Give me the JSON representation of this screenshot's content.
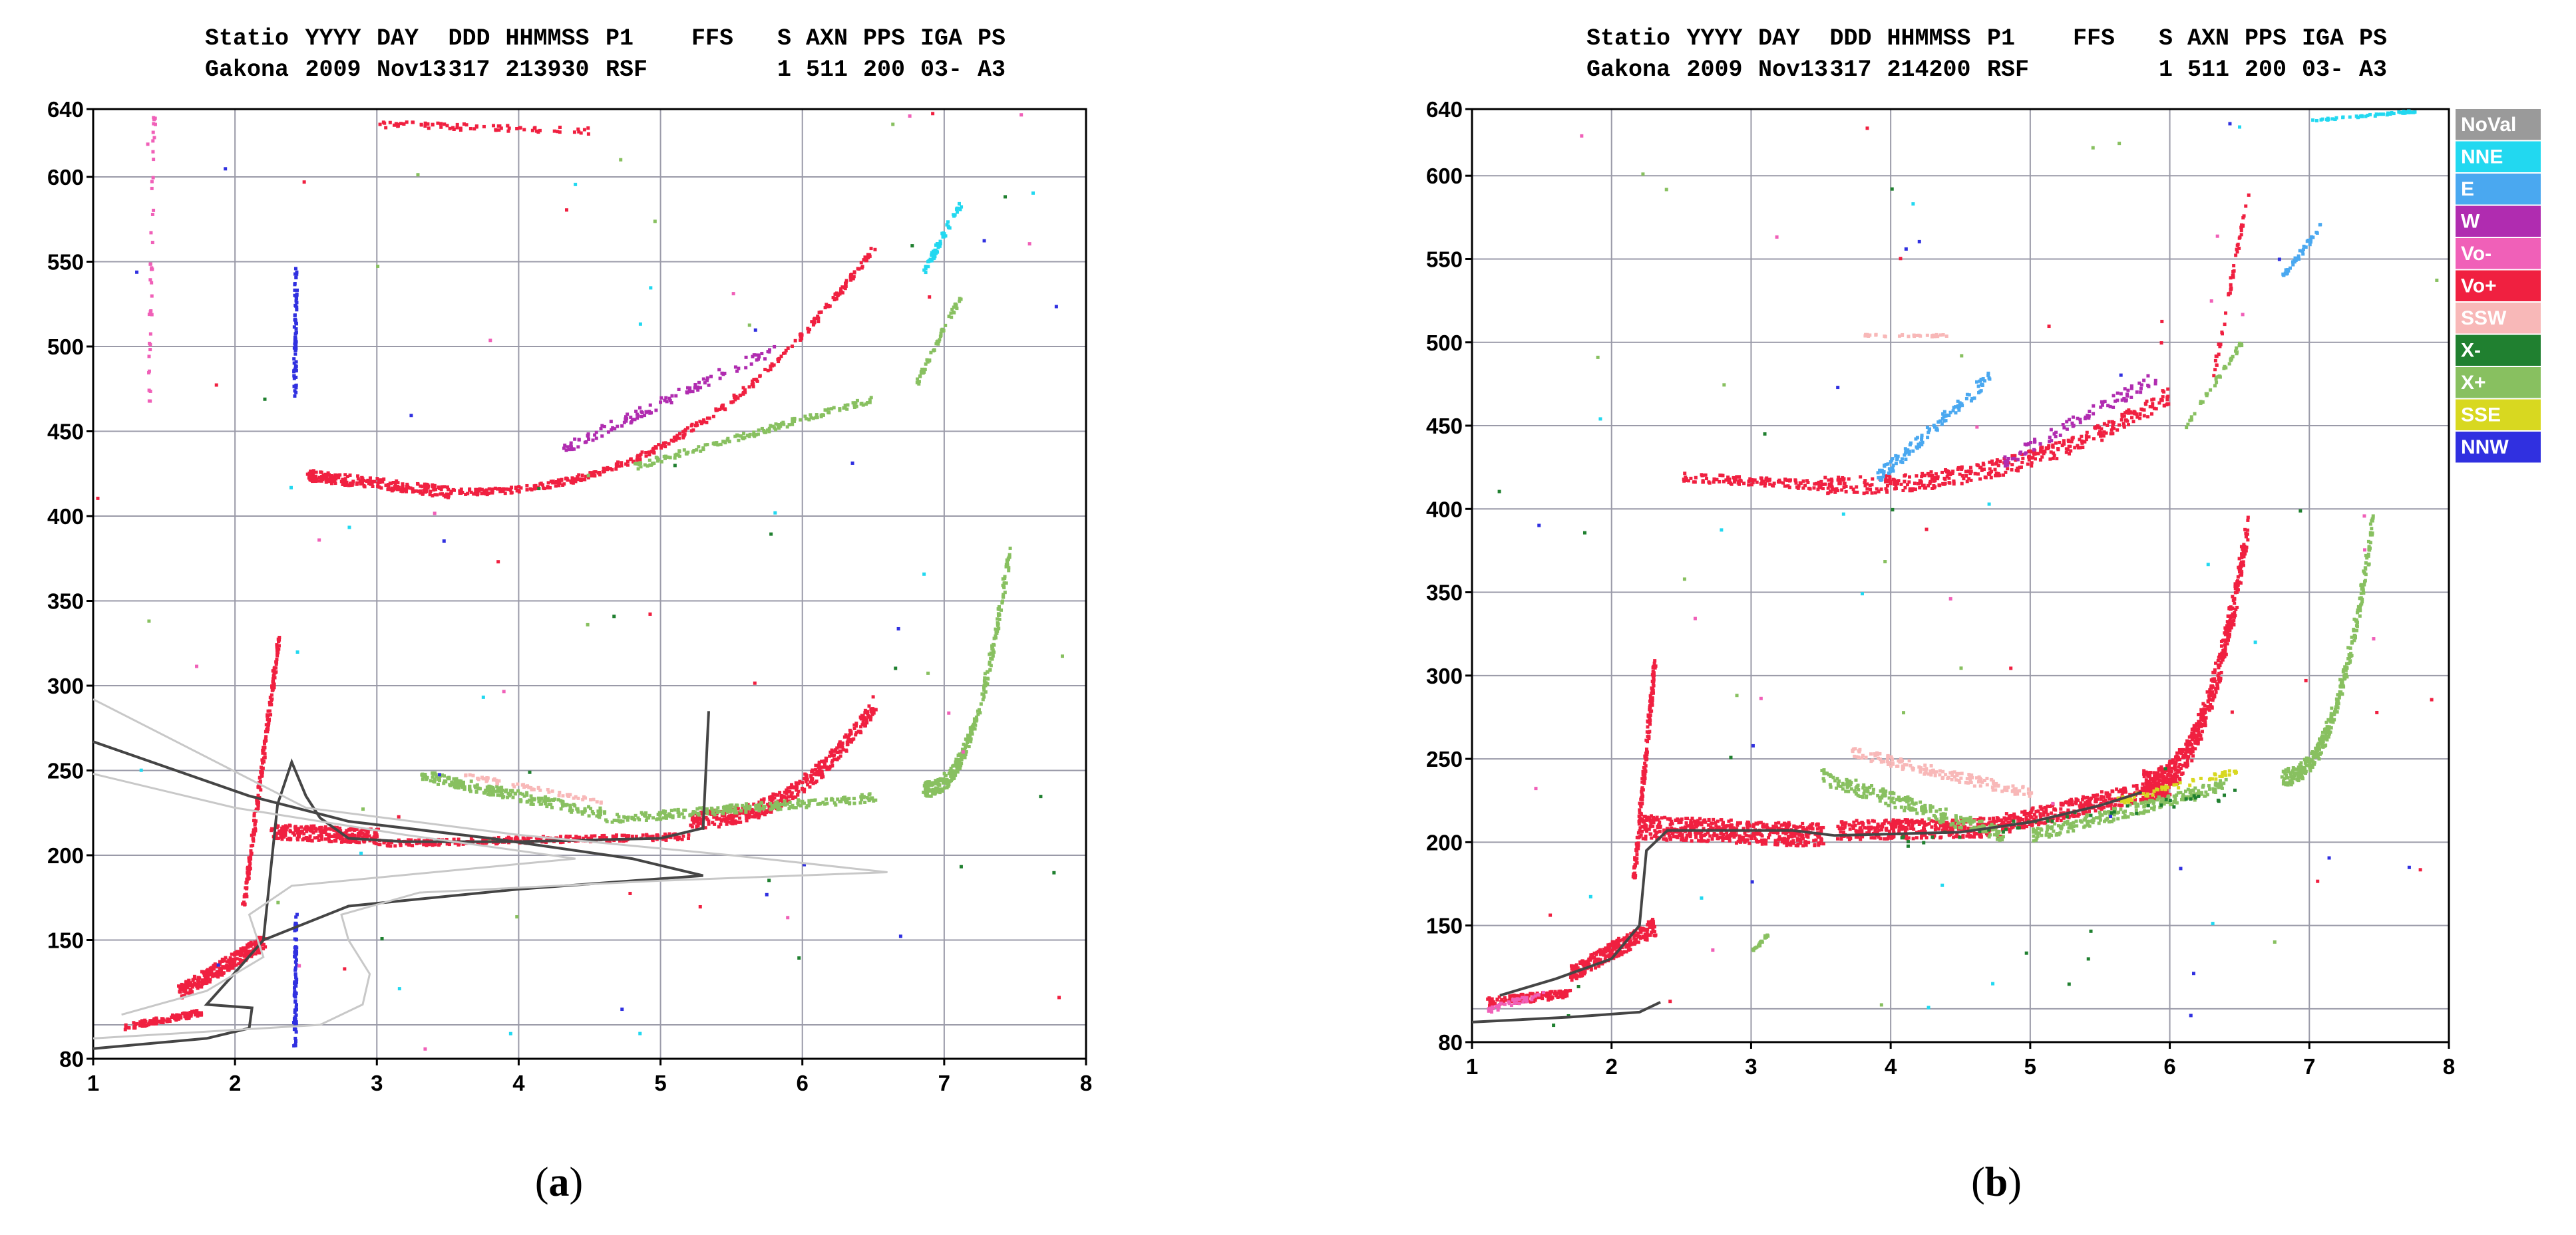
{
  "figure": {
    "caption_a": "a",
    "caption_b": "b"
  },
  "colors": {
    "NoVal": "#9a9a9a",
    "NNE": "#22d8f0",
    "E": "#4aa8f0",
    "W": "#b02cb0",
    "Vo-": "#f060b8",
    "Vo+": "#f02040",
    "SSW": "#f8b8b8",
    "X-": "#208030",
    "X+": "#88c060",
    "SSE": "#d8d820",
    "NNW": "#3030e0",
    "grid": "#9a9aa8",
    "trace": "#454545",
    "trace_light": "#c8c8c8"
  },
  "chart_data": [
    {
      "type": "scatter",
      "panel": "a",
      "header": {
        "labels": [
          "Statio",
          "YYYY",
          "DAY",
          "DDD",
          "HHMMSS",
          "P1",
          "FFS",
          "S",
          "AXN",
          "PPS",
          "IGA",
          "PS"
        ],
        "values": [
          "Gakona",
          "2009",
          "Nov13",
          "317",
          "213930",
          "RSF",
          "",
          "1",
          "511",
          "200",
          "03-",
          "A3"
        ]
      },
      "xlim": [
        1,
        8
      ],
      "ylim": [
        80,
        640
      ],
      "xticks": [
        "1",
        "2",
        "3",
        "4",
        "5",
        "6",
        "7",
        "8"
      ],
      "yticks": [
        640,
        600,
        550,
        500,
        450,
        400,
        350,
        300,
        250,
        200,
        150,
        80
      ],
      "xlabel": "",
      "ylabel": "",
      "series": [
        {
          "name": "Vo+",
          "segments": [
            {
              "x0": 1.22,
              "x1": 1.75,
              "y0": 100,
              "y1": 108,
              "thick": 6,
              "density": 120
            },
            {
              "x0": 1.6,
              "x1": 2.2,
              "y0": 120,
              "y1": 150,
              "thick": 14,
              "density": 300
            },
            {
              "x0": 2.05,
              "x1": 2.3,
              "y0": 170,
              "y1": 330,
              "thick": 8,
              "density": 200
            },
            {
              "x0": 2.25,
              "x1": 3.0,
              "y0": 215,
              "y1": 212,
              "thick": 14,
              "density": 260
            },
            {
              "x0": 3.0,
              "x1": 5.2,
              "y0": 208,
              "y1": 212,
              "thick": 6,
              "density": 260
            },
            {
              "x0": 5.2,
              "x1": 6.5,
              "y0": 222,
              "y1": 290,
              "thick": 16,
              "density": 420,
              "curve": 1
            },
            {
              "x0": 2.5,
              "x1": 3.5,
              "y0": 425,
              "y1": 415,
              "thick": 10,
              "density": 220
            },
            {
              "x0": 3.5,
              "x1": 6.5,
              "y0": 415,
              "y1": 560,
              "thick": 6,
              "density": 360,
              "curve": 1
            },
            {
              "x0": 3.0,
              "x1": 4.5,
              "y0": 632,
              "y1": 628,
              "thick": 6,
              "density": 80
            }
          ]
        },
        {
          "name": "X+",
          "segments": [
            {
              "x0": 3.3,
              "x1": 4.6,
              "y0": 248,
              "y1": 225,
              "thick": 10,
              "density": 220
            },
            {
              "x0": 4.6,
              "x1": 6.5,
              "y0": 222,
              "y1": 235,
              "thick": 8,
              "density": 240
            },
            {
              "x0": 6.85,
              "x1": 7.45,
              "y0": 240,
              "y1": 380,
              "thick": 14,
              "density": 300,
              "curve": 1
            },
            {
              "x0": 4.8,
              "x1": 6.5,
              "y0": 430,
              "y1": 470,
              "thick": 6,
              "density": 160
            },
            {
              "x0": 6.8,
              "x1": 7.1,
              "y0": 480,
              "y1": 530,
              "thick": 6,
              "density": 60
            }
          ]
        },
        {
          "name": "NNW",
          "segments": [
            {
              "x0": 2.41,
              "x1": 2.42,
              "y0": 470,
              "y1": 548,
              "thick": 6,
              "density": 80
            },
            {
              "x0": 2.41,
              "x1": 2.42,
              "y0": 88,
              "y1": 165,
              "thick": 6,
              "density": 80
            }
          ]
        },
        {
          "name": "W",
          "segments": [
            {
              "x0": 4.3,
              "x1": 5.8,
              "y0": 440,
              "y1": 500,
              "thick": 10,
              "density": 120
            }
          ]
        },
        {
          "name": "SSW",
          "segments": [
            {
              "x0": 3.5,
              "x1": 4.6,
              "y0": 250,
              "y1": 232,
              "thick": 4,
              "density": 60
            }
          ]
        },
        {
          "name": "NNE",
          "segments": [
            {
              "x0": 6.85,
              "x1": 7.1,
              "y0": 545,
              "y1": 585,
              "thick": 8,
              "density": 60
            }
          ]
        },
        {
          "name": "Vo-",
          "segments": [
            {
              "x0": 1.38,
              "x1": 1.42,
              "y0": 460,
              "y1": 640,
              "thick": 2,
              "density": 40
            }
          ]
        }
      ],
      "traces": [
        {
          "style": "dark",
          "points": [
            [
              1.0,
              86
            ],
            [
              1.8,
              92
            ],
            [
              2.1,
              98
            ],
            [
              2.12,
              110
            ],
            [
              1.8,
              112
            ],
            [
              1.95,
              126
            ],
            [
              2.2,
              150
            ],
            [
              2.8,
              170
            ],
            [
              4.0,
              180
            ],
            [
              5.3,
              188
            ],
            [
              4.8,
              198
            ],
            [
              3.8,
              210
            ],
            [
              2.8,
              220
            ],
            [
              2.1,
              235
            ],
            [
              1.0,
              267
            ]
          ]
        },
        {
          "style": "dark",
          "points": [
            [
              2.2,
              150
            ],
            [
              2.3,
              230
            ],
            [
              2.4,
              255
            ],
            [
              2.5,
              235
            ],
            [
              2.6,
              222
            ],
            [
              2.8,
              210
            ],
            [
              3.2,
              208
            ],
            [
              4.0,
              208
            ],
            [
              5.0,
              210
            ],
            [
              5.3,
              216
            ]
          ]
        },
        {
          "style": "dark",
          "points": [
            [
              5.3,
              215
            ],
            [
              5.34,
              285
            ]
          ]
        },
        {
          "style": "light",
          "points": [
            [
              1.0,
              92
            ],
            [
              2.6,
              100
            ],
            [
              2.9,
              112
            ],
            [
              2.95,
              130
            ],
            [
              2.8,
              150
            ],
            [
              2.75,
              165
            ],
            [
              3.3,
              178
            ],
            [
              5.0,
              185
            ],
            [
              6.6,
              190
            ],
            [
              5.5,
              200
            ],
            [
              4.0,
              212
            ],
            [
              2.5,
              228
            ],
            [
              1.0,
              292
            ]
          ]
        },
        {
          "style": "light",
          "points": [
            [
              1.0,
              248
            ],
            [
              2.0,
              228
            ],
            [
              3.2,
              212
            ],
            [
              4.4,
              198
            ],
            [
              2.4,
              182
            ],
            [
              2.1,
              165
            ],
            [
              2.2,
              140
            ],
            [
              1.8,
              120
            ],
            [
              1.2,
              106
            ]
          ]
        }
      ]
    },
    {
      "type": "scatter",
      "panel": "b",
      "header": {
        "labels": [
          "Statio",
          "YYYY",
          "DAY",
          "DDD",
          "HHMMSS",
          "P1",
          "FFS",
          "S",
          "AXN",
          "PPS",
          "IGA",
          "PS"
        ],
        "values": [
          "Gakona",
          "2009",
          "Nov13",
          "317",
          "214200",
          "RSF",
          "",
          "1",
          "511",
          "200",
          "03-",
          "A3"
        ]
      },
      "xlim": [
        1,
        8
      ],
      "ylim": [
        80,
        640
      ],
      "xticks": [
        "1",
        "2",
        "3",
        "4",
        "5",
        "6",
        "7",
        "8"
      ],
      "yticks": [
        640,
        600,
        550,
        500,
        450,
        400,
        350,
        300,
        250,
        200,
        150,
        80
      ],
      "xlabel": "",
      "ylabel": "",
      "legend": [
        "NoVal",
        "NNE",
        "E",
        "W",
        "Vo-",
        "Vo+",
        "SSW",
        "X-",
        "X+",
        "SSE",
        "NNW"
      ],
      "series": [
        {
          "name": "Vo+",
          "segments": [
            {
              "x0": 1.1,
              "x1": 1.7,
              "y0": 105,
              "y1": 110,
              "thick": 8,
              "density": 140
            },
            {
              "x0": 1.7,
              "x1": 2.3,
              "y0": 122,
              "y1": 150,
              "thick": 16,
              "density": 320
            },
            {
              "x0": 2.15,
              "x1": 2.3,
              "y0": 180,
              "y1": 310,
              "thick": 8,
              "density": 180
            },
            {
              "x0": 2.2,
              "x1": 3.5,
              "y0": 210,
              "y1": 205,
              "thick": 22,
              "density": 520
            },
            {
              "x0": 3.6,
              "x1": 4.8,
              "y0": 208,
              "y1": 210,
              "thick": 18,
              "density": 380
            },
            {
              "x0": 4.8,
              "x1": 6.0,
              "y0": 212,
              "y1": 235,
              "thick": 18,
              "density": 360
            },
            {
              "x0": 5.8,
              "x1": 6.55,
              "y0": 235,
              "y1": 390,
              "thick": 28,
              "density": 560,
              "curve": 1
            },
            {
              "x0": 2.5,
              "x1": 3.5,
              "y0": 420,
              "y1": 415,
              "thick": 8,
              "density": 120
            },
            {
              "x0": 3.5,
              "x1": 6.0,
              "y0": 415,
              "y1": 470,
              "thick": 16,
              "density": 420,
              "curve": 1
            },
            {
              "x0": 6.3,
              "x1": 6.55,
              "y0": 480,
              "y1": 590,
              "thick": 4,
              "density": 50
            }
          ]
        },
        {
          "name": "X+",
          "segments": [
            {
              "x0": 3.5,
              "x1": 4.8,
              "y0": 240,
              "y1": 205,
              "thick": 14,
              "density": 240
            },
            {
              "x0": 5.0,
              "x1": 6.4,
              "y0": 205,
              "y1": 235,
              "thick": 12,
              "density": 240
            },
            {
              "x0": 6.8,
              "x1": 7.45,
              "y0": 240,
              "y1": 395,
              "thick": 16,
              "density": 340,
              "curve": 1
            },
            {
              "x0": 3.0,
              "x1": 3.1,
              "y0": 135,
              "y1": 145,
              "thick": 2,
              "density": 20
            },
            {
              "x0": 6.1,
              "x1": 6.5,
              "y0": 450,
              "y1": 500,
              "thick": 4,
              "density": 40
            }
          ]
        },
        {
          "name": "SSW",
          "segments": [
            {
              "x0": 3.7,
              "x1": 5.0,
              "y0": 255,
              "y1": 230,
              "thick": 10,
              "density": 160
            },
            {
              "x0": 3.8,
              "x1": 4.4,
              "y0": 505,
              "y1": 505,
              "thick": 2,
              "density": 30
            }
          ]
        },
        {
          "name": "E",
          "segments": [
            {
              "x0": 3.9,
              "x1": 4.7,
              "y0": 420,
              "y1": 480,
              "thick": 12,
              "density": 120
            },
            {
              "x0": 6.8,
              "x1": 7.1,
              "y0": 540,
              "y1": 575,
              "thick": 6,
              "density": 40
            }
          ]
        },
        {
          "name": "W",
          "segments": [
            {
              "x0": 4.8,
              "x1": 5.9,
              "y0": 430,
              "y1": 480,
              "thick": 12,
              "density": 90
            }
          ]
        },
        {
          "name": "SSE",
          "segments": [
            {
              "x0": 5.6,
              "x1": 6.5,
              "y0": 225,
              "y1": 245,
              "thick": 6,
              "density": 60
            }
          ]
        },
        {
          "name": "NNE",
          "segments": [
            {
              "x0": 7.0,
              "x1": 7.8,
              "y0": 634,
              "y1": 640,
              "thick": 2,
              "density": 60
            }
          ]
        },
        {
          "name": "X-",
          "segments": [
            {
              "x0": 4.0,
              "x1": 6.5,
              "y0": 200,
              "y1": 230,
              "thick": 10,
              "density": 40
            }
          ]
        },
        {
          "name": "Vo-",
          "segments": [
            {
              "x0": 1.1,
              "x1": 1.5,
              "y0": 100,
              "y1": 110,
              "thick": 6,
              "density": 40
            }
          ]
        }
      ],
      "traces": [
        {
          "style": "dark",
          "points": [
            [
              1.0,
              92
            ],
            [
              1.7,
              95
            ],
            [
              2.2,
              98
            ],
            [
              2.35,
              104
            ]
          ]
        },
        {
          "style": "dark",
          "points": [
            [
              1.2,
              108
            ],
            [
              1.6,
              118
            ],
            [
              2.0,
              130
            ],
            [
              2.2,
              150
            ],
            [
              2.25,
              195
            ],
            [
              2.4,
              207
            ],
            [
              3.3,
              207
            ],
            [
              3.6,
              204
            ],
            [
              4.5,
              206
            ],
            [
              5.0,
              212
            ],
            [
              5.5,
              222
            ],
            [
              5.8,
              230
            ]
          ]
        }
      ]
    }
  ]
}
